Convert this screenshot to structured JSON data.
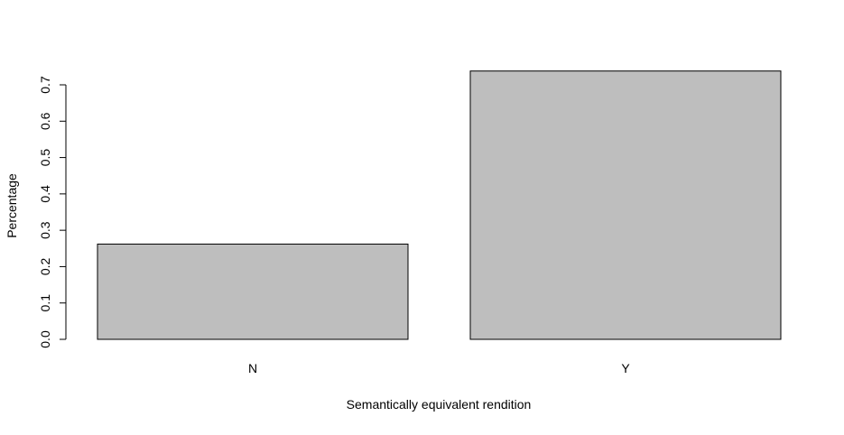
{
  "chart_data": {
    "type": "bar",
    "categories": [
      "N",
      "Y"
    ],
    "values": [
      0.262,
      0.738
    ],
    "title": "",
    "xlabel": "Semantically equivalent rendition",
    "ylabel": "Percentage",
    "ylim": [
      0,
      0.7
    ],
    "yticks": [
      "0.0",
      "0.1",
      "0.2",
      "0.3",
      "0.4",
      "0.5",
      "0.6",
      "0.7"
    ],
    "grid": false,
    "legend": "none",
    "colors": {
      "bar_fill": "#bebebe",
      "bar_stroke": "#000000",
      "axis": "#000000"
    }
  }
}
